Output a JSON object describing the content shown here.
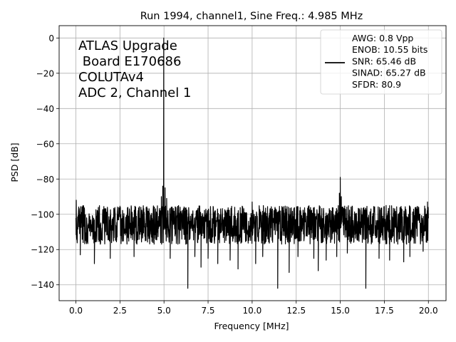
{
  "chart_data": {
    "type": "line",
    "title": "Run 1994, channel1, Sine Freq.: 4.985 MHz",
    "xlabel": "Frequency [MHz]",
    "ylabel": "PSD [dB]",
    "xlim": [
      -0.95,
      21.0
    ],
    "ylim": [
      -149,
      7
    ],
    "xticks": [
      0.0,
      2.5,
      5.0,
      7.5,
      10.0,
      12.5,
      15.0,
      17.5,
      20.0
    ],
    "xtick_labels": [
      "0.0",
      "2.5",
      "5.0",
      "7.5",
      "10.0",
      "12.5",
      "15.0",
      "17.5",
      "20.0"
    ],
    "yticks": [
      0,
      -20,
      -40,
      -60,
      -80,
      -100,
      -120,
      -140
    ],
    "ytick_labels": [
      "0",
      "−20",
      "−40",
      "−60",
      "−80",
      "−100",
      "−120",
      "−140"
    ],
    "grid": true,
    "annotation": [
      "ATLAS Upgrade",
      " Board E170686",
      "COLUTAv4",
      "ADC 2, Channel 1"
    ],
    "legend": {
      "placement": "top-right",
      "entries": [
        "AWG: 0.8 Vpp",
        "ENOB: 10.55 bits",
        "SNR: 65.46 dB",
        "SINAD: 65.27 dB",
        "SFDR: 80.9"
      ]
    },
    "series": [
      {
        "name": "PSD",
        "color": "#000000",
        "noise_floor": {
          "x_start": 0.0,
          "x_end": 20.0,
          "center": -105,
          "upper": -95,
          "lower": -117
        },
        "dips": [
          {
            "x": 0.25,
            "y": -123
          },
          {
            "x": 1.05,
            "y": -128
          },
          {
            "x": 1.95,
            "y": -125
          },
          {
            "x": 3.3,
            "y": -124
          },
          {
            "x": 5.35,
            "y": -125
          },
          {
            "x": 6.35,
            "y": -142
          },
          {
            "x": 6.75,
            "y": -124
          },
          {
            "x": 7.1,
            "y": -130
          },
          {
            "x": 7.5,
            "y": -125
          },
          {
            "x": 8.05,
            "y": -128
          },
          {
            "x": 8.75,
            "y": -126
          },
          {
            "x": 9.2,
            "y": -131
          },
          {
            "x": 10.2,
            "y": -128
          },
          {
            "x": 10.6,
            "y": -124
          },
          {
            "x": 11.45,
            "y": -142
          },
          {
            "x": 12.1,
            "y": -133
          },
          {
            "x": 12.6,
            "y": -124
          },
          {
            "x": 13.5,
            "y": -125
          },
          {
            "x": 13.75,
            "y": -132
          },
          {
            "x": 14.2,
            "y": -126
          },
          {
            "x": 14.8,
            "y": -124
          },
          {
            "x": 15.4,
            "y": -122
          },
          {
            "x": 16.45,
            "y": -142
          },
          {
            "x": 17.2,
            "y": -125
          },
          {
            "x": 17.8,
            "y": -126
          },
          {
            "x": 18.6,
            "y": -127
          },
          {
            "x": 18.95,
            "y": -124
          },
          {
            "x": 19.7,
            "y": -121
          }
        ],
        "peaks": [
          {
            "x": 0.02,
            "y": -92
          },
          {
            "x": 4.985,
            "y": 0
          },
          {
            "x": 4.93,
            "y": -84
          },
          {
            "x": 5.06,
            "y": -85
          },
          {
            "x": 4.85,
            "y": -90
          },
          {
            "x": 5.15,
            "y": -91
          },
          {
            "x": 15.0,
            "y": -79
          },
          {
            "x": 14.95,
            "y": -88
          },
          {
            "x": 15.06,
            "y": -90
          },
          {
            "x": 10.0,
            "y": -93
          },
          {
            "x": 19.95,
            "y": -93
          },
          {
            "x": 17.6,
            "y": -95
          }
        ]
      }
    ]
  }
}
